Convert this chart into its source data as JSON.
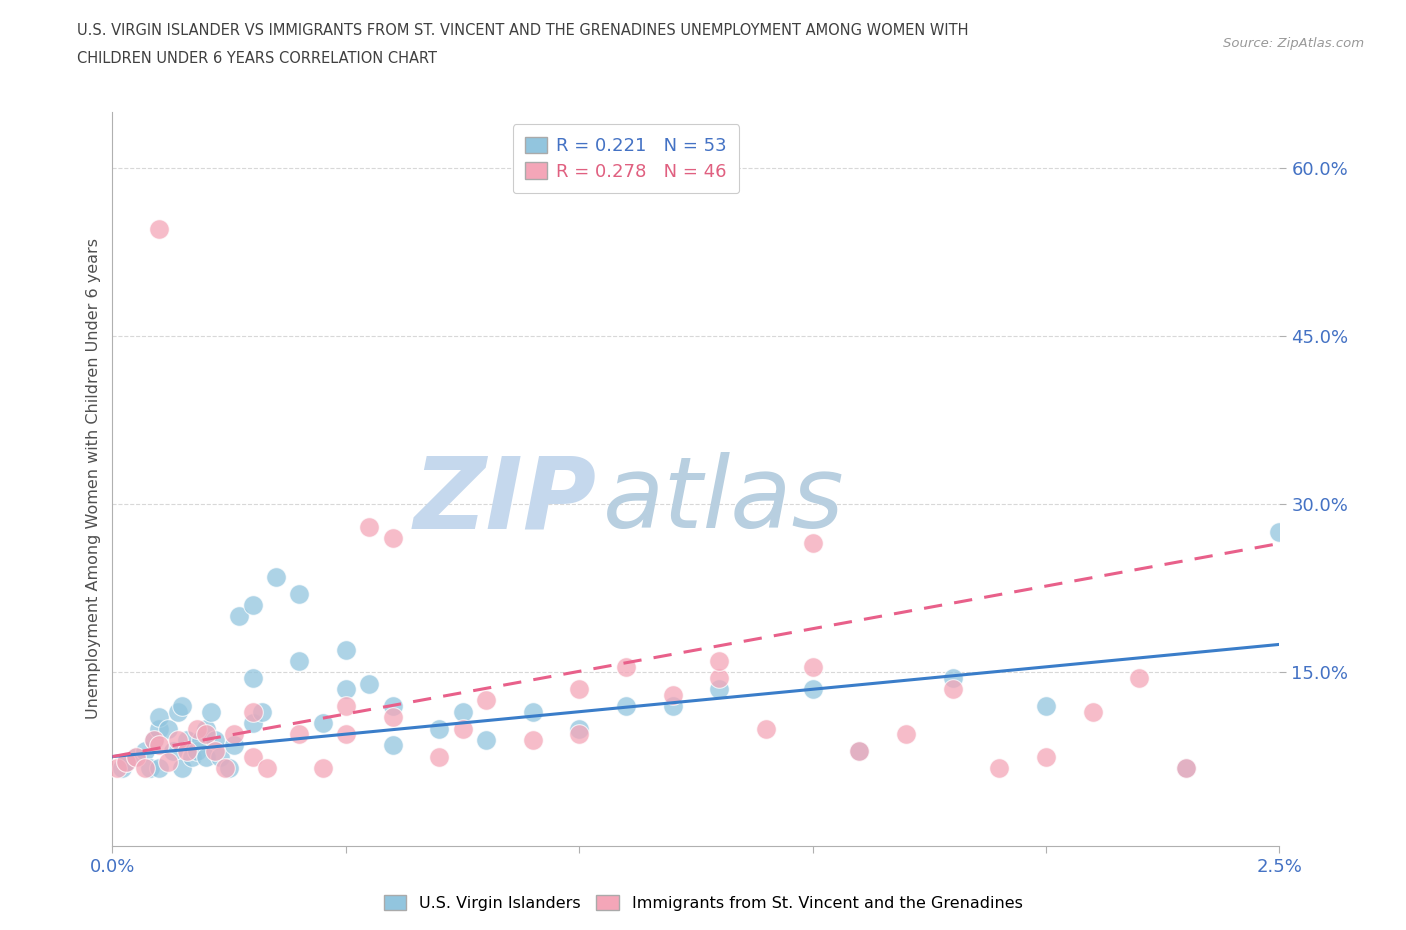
{
  "title_line1": "U.S. VIRGIN ISLANDER VS IMMIGRANTS FROM ST. VINCENT AND THE GRENADINES UNEMPLOYMENT AMONG WOMEN WITH",
  "title_line2": "CHILDREN UNDER 6 YEARS CORRELATION CHART",
  "source_text": "Source: ZipAtlas.com",
  "ylabel": "Unemployment Among Women with Children Under 6 years",
  "xlim": [
    0.0,
    0.025
  ],
  "ylim": [
    -0.005,
    0.65
  ],
  "yticks": [
    0.15,
    0.3,
    0.45,
    0.6
  ],
  "ytick_labels": [
    "15.0%",
    "30.0%",
    "45.0%",
    "60.0%"
  ],
  "xticks": [
    0.0,
    0.005,
    0.01,
    0.015,
    0.02,
    0.025
  ],
  "xtick_labels": [
    "0.0%",
    "",
    "",
    "",
    "",
    "2.5%"
  ],
  "legend_r1": "R = 0.221",
  "legend_n1": "N = 53",
  "legend_r2": "R = 0.278",
  "legend_n2": "N = 46",
  "color_blue": "#92c5de",
  "color_pink": "#f4a6b8",
  "color_blue_line": "#3a7dc9",
  "color_pink_line": "#e8608a",
  "watermark_zip": "ZIP",
  "watermark_atlas": "atlas",
  "watermark_color_zip": "#c5d8ed",
  "watermark_color_atlas": "#b8cfe0",
  "blue_scatter_x": [
    0.0002,
    0.0003,
    0.0005,
    0.0007,
    0.0008,
    0.0009,
    0.001,
    0.001,
    0.001,
    0.0012,
    0.0013,
    0.0014,
    0.0015,
    0.0015,
    0.0016,
    0.0017,
    0.0018,
    0.0019,
    0.002,
    0.002,
    0.0021,
    0.0022,
    0.0023,
    0.0025,
    0.0026,
    0.0027,
    0.003,
    0.003,
    0.003,
    0.0032,
    0.0035,
    0.004,
    0.004,
    0.0045,
    0.005,
    0.005,
    0.0055,
    0.006,
    0.006,
    0.007,
    0.0075,
    0.008,
    0.009,
    0.01,
    0.011,
    0.012,
    0.013,
    0.015,
    0.016,
    0.018,
    0.02,
    0.023,
    0.025
  ],
  "blue_scatter_y": [
    0.065,
    0.07,
    0.075,
    0.08,
    0.065,
    0.09,
    0.1,
    0.11,
    0.065,
    0.1,
    0.08,
    0.115,
    0.12,
    0.065,
    0.09,
    0.075,
    0.08,
    0.09,
    0.1,
    0.075,
    0.115,
    0.09,
    0.075,
    0.065,
    0.085,
    0.2,
    0.105,
    0.21,
    0.145,
    0.115,
    0.235,
    0.22,
    0.16,
    0.105,
    0.135,
    0.17,
    0.14,
    0.085,
    0.12,
    0.1,
    0.115,
    0.09,
    0.115,
    0.1,
    0.12,
    0.12,
    0.135,
    0.135,
    0.08,
    0.145,
    0.12,
    0.065,
    0.275
  ],
  "pink_scatter_x": [
    0.0001,
    0.0003,
    0.0005,
    0.0007,
    0.0009,
    0.001,
    0.0012,
    0.0014,
    0.0016,
    0.0018,
    0.002,
    0.0022,
    0.0024,
    0.0026,
    0.003,
    0.003,
    0.0033,
    0.004,
    0.0045,
    0.005,
    0.005,
    0.0055,
    0.006,
    0.006,
    0.007,
    0.0075,
    0.008,
    0.009,
    0.01,
    0.01,
    0.011,
    0.012,
    0.013,
    0.013,
    0.014,
    0.015,
    0.015,
    0.016,
    0.017,
    0.018,
    0.019,
    0.02,
    0.021,
    0.022,
    0.023,
    0.001
  ],
  "pink_scatter_y": [
    0.065,
    0.07,
    0.075,
    0.065,
    0.09,
    0.085,
    0.07,
    0.09,
    0.08,
    0.1,
    0.095,
    0.08,
    0.065,
    0.095,
    0.075,
    0.115,
    0.065,
    0.095,
    0.065,
    0.095,
    0.12,
    0.28,
    0.11,
    0.27,
    0.075,
    0.1,
    0.125,
    0.09,
    0.135,
    0.095,
    0.155,
    0.13,
    0.145,
    0.16,
    0.1,
    0.155,
    0.265,
    0.08,
    0.095,
    0.135,
    0.065,
    0.075,
    0.115,
    0.145,
    0.065,
    0.545
  ],
  "blue_trend_x": [
    0.0,
    0.025
  ],
  "blue_trend_y": [
    0.075,
    0.175
  ],
  "pink_trend_x": [
    0.0,
    0.025
  ],
  "pink_trend_y": [
    0.075,
    0.265
  ],
  "background_color": "#ffffff",
  "grid_color": "#d8d8d8",
  "axis_color": "#b0b0b0",
  "tick_color_blue": "#4472c4",
  "title_color": "#404040",
  "ylabel_color": "#505050"
}
